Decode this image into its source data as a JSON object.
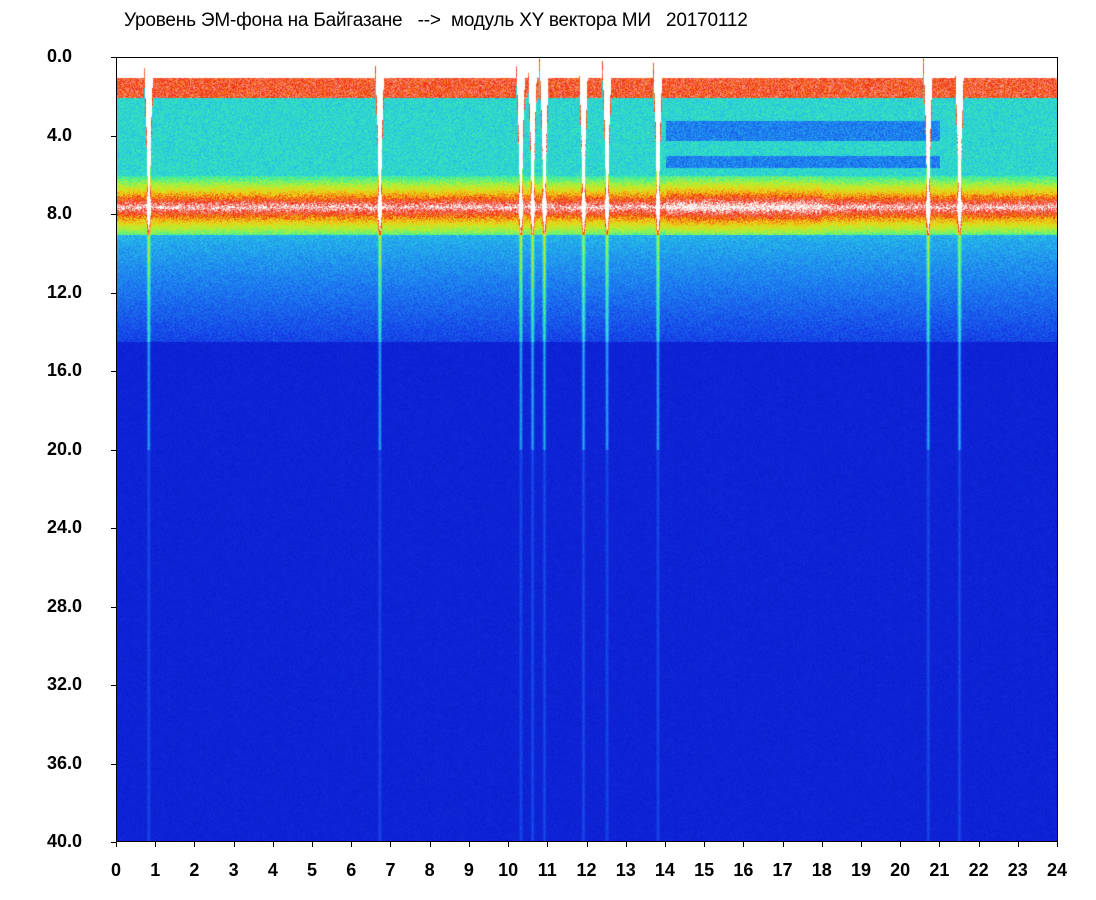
{
  "chart_data": {
    "type": "heatmap",
    "title": "Уровень ЭМ-фона на Байгазане   -->  модуль XY вектора МИ   20170112",
    "x_ticks": [
      "0",
      "1",
      "2",
      "3",
      "4",
      "5",
      "6",
      "7",
      "8",
      "9",
      "10",
      "11",
      "12",
      "13",
      "14",
      "15",
      "16",
      "17",
      "18",
      "19",
      "20",
      "21",
      "22",
      "23",
      "24"
    ],
    "y_ticks": [
      "0.0",
      "4.0",
      "8.0",
      "12.0",
      "16.0",
      "20.0",
      "24.0",
      "28.0",
      "32.0",
      "36.0",
      "40.0"
    ],
    "xlim": [
      0,
      24
    ],
    "ylim": [
      0,
      40
    ],
    "y_inverted": true,
    "colormap": [
      "#0a14c8",
      "#1e50f0",
      "#28b4f0",
      "#3cf0b4",
      "#c8f028",
      "#f0c814",
      "#f01e14",
      "#ffffff"
    ],
    "intensity_bands": [
      {
        "y_from": 0.8,
        "y_to": 2.0,
        "level": "high"
      },
      {
        "y_from": 2.0,
        "y_to": 6.0,
        "level": "medium"
      },
      {
        "y_from": 6.0,
        "y_to": 9.0,
        "level": "peak"
      },
      {
        "y_from": 9.0,
        "y_to": 14.5,
        "level": "low"
      },
      {
        "y_from": 14.5,
        "y_to": 40.0,
        "level": "background"
      }
    ],
    "vertical_streaks_hours": [
      0.8,
      6.7,
      10.3,
      10.6,
      10.9,
      11.9,
      12.5,
      13.8,
      20.7,
      21.5
    ]
  }
}
